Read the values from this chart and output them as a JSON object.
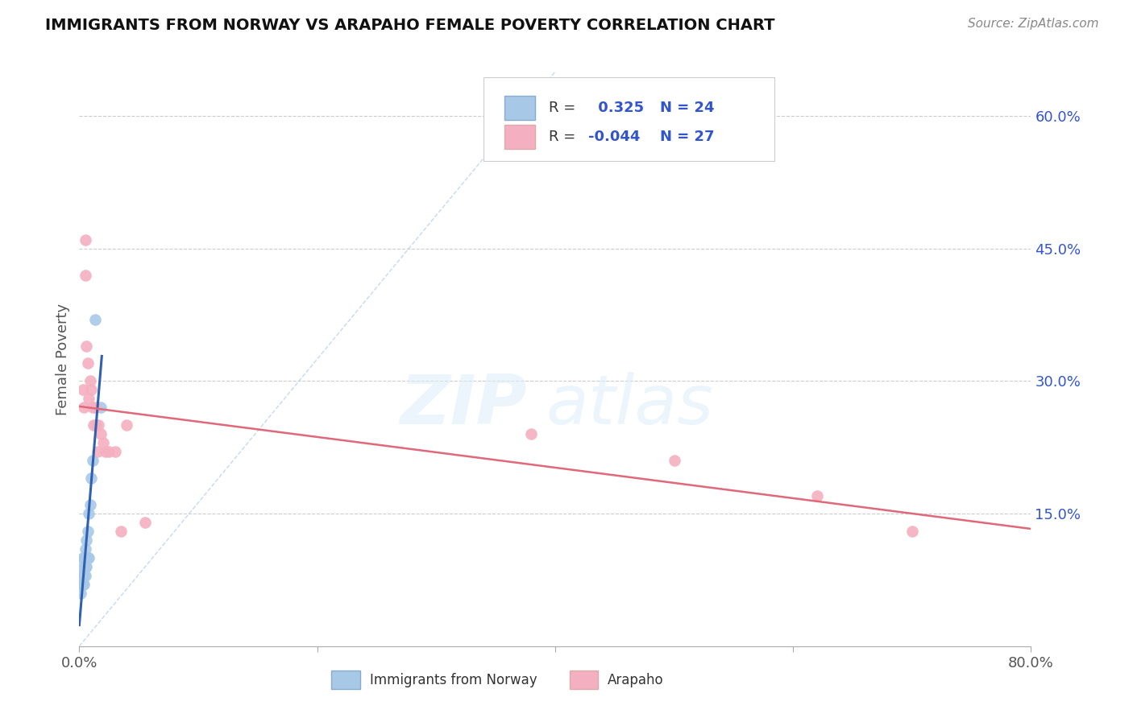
{
  "title": "IMMIGRANTS FROM NORWAY VS ARAPAHO FEMALE POVERTY CORRELATION CHART",
  "source": "Source: ZipAtlas.com",
  "ylabel": "Female Poverty",
  "xlim": [
    0.0,
    0.8
  ],
  "ylim": [
    0.0,
    0.65
  ],
  "xticks": [
    0.0,
    0.2,
    0.4,
    0.6,
    0.8
  ],
  "xticklabels": [
    "0.0%",
    "",
    "",
    "",
    "80.0%"
  ],
  "ytick_right_values": [
    0.15,
    0.3,
    0.45,
    0.6
  ],
  "grid_color": "#cccccc",
  "background_color": "#ffffff",
  "norway_color": "#a8c8e8",
  "norway_line_color": "#3060b0",
  "arapaho_color": "#f4b0c0",
  "arapaho_line_color": "#e06878",
  "diag_line_color": "#b0c8e8",
  "norway_R": 0.325,
  "norway_N": 24,
  "arapaho_R": -0.044,
  "arapaho_N": 27,
  "norway_x": [
    0.001,
    0.002,
    0.002,
    0.003,
    0.003,
    0.003,
    0.004,
    0.004,
    0.004,
    0.005,
    0.005,
    0.005,
    0.006,
    0.006,
    0.006,
    0.007,
    0.007,
    0.008,
    0.008,
    0.009,
    0.01,
    0.011,
    0.013,
    0.018
  ],
  "norway_y": [
    0.06,
    0.07,
    0.08,
    0.07,
    0.09,
    0.1,
    0.07,
    0.08,
    0.1,
    0.08,
    0.09,
    0.11,
    0.09,
    0.1,
    0.12,
    0.1,
    0.13,
    0.1,
    0.15,
    0.16,
    0.19,
    0.21,
    0.37,
    0.27
  ],
  "arapaho_x": [
    0.003,
    0.004,
    0.005,
    0.005,
    0.006,
    0.007,
    0.008,
    0.009,
    0.01,
    0.011,
    0.012,
    0.013,
    0.014,
    0.015,
    0.016,
    0.018,
    0.02,
    0.022,
    0.025,
    0.03,
    0.035,
    0.04,
    0.055,
    0.38,
    0.5,
    0.62,
    0.7
  ],
  "arapaho_y": [
    0.29,
    0.27,
    0.46,
    0.42,
    0.34,
    0.32,
    0.28,
    0.3,
    0.29,
    0.27,
    0.25,
    0.27,
    0.25,
    0.22,
    0.25,
    0.24,
    0.23,
    0.22,
    0.22,
    0.22,
    0.13,
    0.25,
    0.14,
    0.24,
    0.21,
    0.17,
    0.13
  ],
  "watermark_zip": "ZIP",
  "watermark_atlas": "atlas",
  "label_color": "#3355cc",
  "title_color": "#111111",
  "axis_label_color": "#555555",
  "legend_R_color": "#3355cc",
  "legend_N_color": "#3355cc"
}
